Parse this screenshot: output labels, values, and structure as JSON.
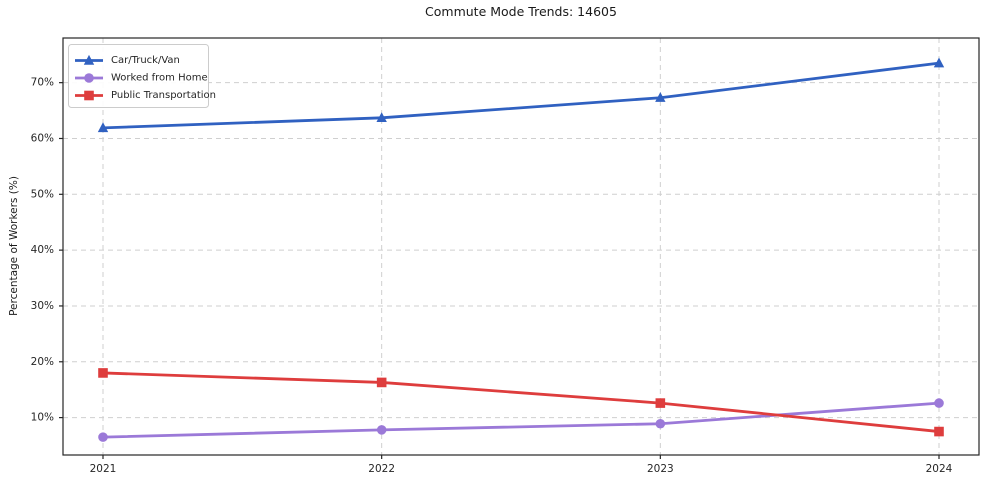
{
  "chart_data": {
    "type": "line",
    "title": "Commute Mode Trends: 14605",
    "xlabel": "",
    "ylabel": "Percentage of Workers (%)",
    "x": [
      2021,
      2022,
      2023,
      2024
    ],
    "x_tick_labels": [
      "2021",
      "2022",
      "2023",
      "2024"
    ],
    "y_ticks": [
      10,
      20,
      30,
      40,
      50,
      60,
      70
    ],
    "y_tick_labels": [
      "10%",
      "20%",
      "30%",
      "40%",
      "50%",
      "60%",
      "70%"
    ],
    "ylim": [
      3.3,
      78.0
    ],
    "grid": true,
    "grid_style": "dashed",
    "legend_position": "upper left",
    "series": [
      {
        "name": "Car/Truck/Van",
        "color": "#3061c1",
        "marker": "triangle",
        "values": [
          61.9,
          63.7,
          67.3,
          73.5
        ]
      },
      {
        "name": "Worked from Home",
        "color": "#9b79d8",
        "marker": "circle",
        "values": [
          6.5,
          7.8,
          8.9,
          12.6
        ]
      },
      {
        "name": "Public Transportation",
        "color": "#de3d3d",
        "marker": "square",
        "values": [
          18.0,
          16.3,
          12.6,
          7.5
        ]
      }
    ],
    "colors": {
      "spine": "#262626",
      "grid": "#cfcfcf",
      "tick_text": "#262626",
      "legend_border": "#cccccc",
      "legend_bg": "#ffffff"
    }
  }
}
